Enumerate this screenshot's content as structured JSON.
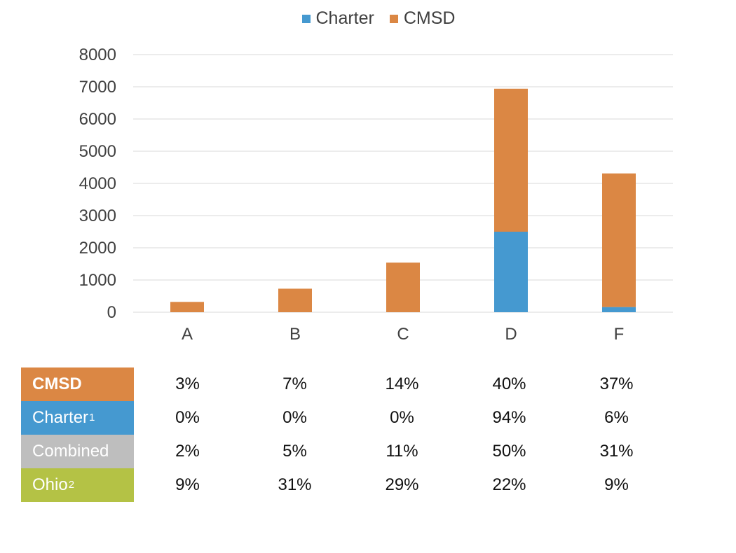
{
  "legend": [
    {
      "label": "Charter",
      "color": "#4599D0"
    },
    {
      "label": "CMSD",
      "color": "#DB8744"
    }
  ],
  "chart_data": {
    "type": "bar",
    "stacked": true,
    "categories": [
      "A",
      "B",
      "C",
      "D",
      "F"
    ],
    "series": [
      {
        "name": "Charter",
        "color": "#4599D0",
        "values": [
          0,
          0,
          0,
          2500,
          160
        ]
      },
      {
        "name": "CMSD",
        "color": "#DB8744",
        "values": [
          320,
          730,
          1540,
          4440,
          4150
        ]
      }
    ],
    "ylim": [
      0,
      8000
    ],
    "yticks": [
      0,
      1000,
      2000,
      3000,
      4000,
      5000,
      6000,
      7000,
      8000
    ],
    "grid": true,
    "legend_position": "top"
  },
  "table": {
    "rows": [
      {
        "label": "CMSD",
        "sup": "",
        "color": "#DB8744",
        "bold": true,
        "values": [
          "3%",
          "7%",
          "14%",
          "40%",
          "37%"
        ]
      },
      {
        "label": "Charter",
        "sup": "1",
        "color": "#4599D0",
        "bold": false,
        "values": [
          "0%",
          "0%",
          "0%",
          "94%",
          "6%"
        ]
      },
      {
        "label": "Combined",
        "sup": "",
        "color": "#BEBEBE",
        "bold": false,
        "values": [
          "2%",
          "5%",
          "11%",
          "50%",
          "31%"
        ]
      },
      {
        "label": "Ohio",
        "sup": "2",
        "color": "#B4C245",
        "bold": false,
        "values": [
          "9%",
          "31%",
          "29%",
          "22%",
          "9%"
        ]
      }
    ]
  }
}
